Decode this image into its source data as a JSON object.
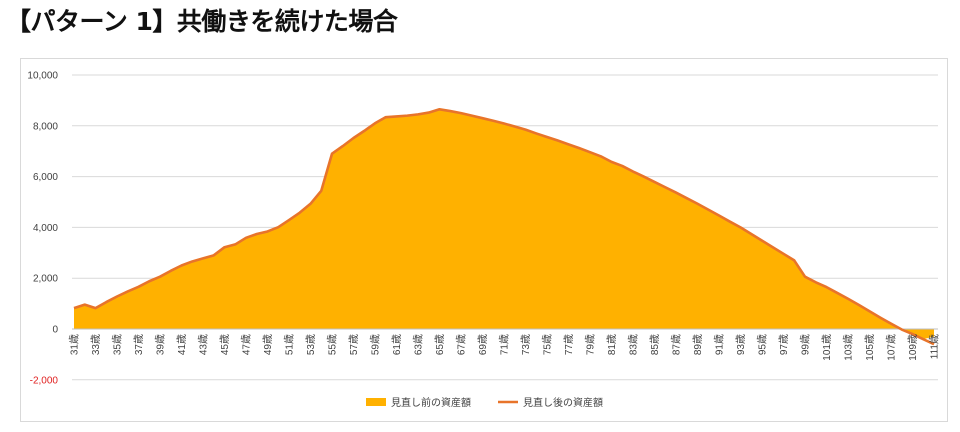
{
  "page": {
    "title": "【パターン 1】共働きを続けた場合"
  },
  "colors": {
    "area": "#FFB100",
    "line": "#E8742A",
    "grid": "#d9d9d9",
    "negative_label": "#E02020"
  },
  "chart_data": {
    "type": "area",
    "title": "",
    "xlabel": "",
    "ylabel": "",
    "ylim": [
      -2000,
      10000
    ],
    "y_ticks": [
      -2000,
      0,
      2000,
      4000,
      6000,
      8000,
      10000
    ],
    "y_tick_labels": [
      "-2,000",
      "0",
      "2,000",
      "4,000",
      "6,000",
      "8,000",
      "10,000"
    ],
    "grid": true,
    "legend_position": "bottom",
    "x": [
      "31歳",
      "32歳",
      "33歳",
      "34歳",
      "35歳",
      "36歳",
      "37歳",
      "38歳",
      "39歳",
      "40歳",
      "41歳",
      "42歳",
      "43歳",
      "44歳",
      "45歳",
      "46歳",
      "47歳",
      "48歳",
      "49歳",
      "50歳",
      "51歳",
      "52歳",
      "53歳",
      "54歳",
      "55歳",
      "56歳",
      "57歳",
      "58歳",
      "59歳",
      "60歳",
      "61歳",
      "62歳",
      "63歳",
      "64歳",
      "65歳",
      "66歳",
      "67歳",
      "68歳",
      "69歳",
      "70歳",
      "71歳",
      "72歳",
      "73歳",
      "74歳",
      "75歳",
      "76歳",
      "77歳",
      "78歳",
      "79歳",
      "80歳",
      "81歳",
      "82歳",
      "83歳",
      "84歳",
      "85歳",
      "86歳",
      "87歳",
      "88歳",
      "89歳",
      "90歳",
      "91歳",
      "92歳",
      "93歳",
      "94歳",
      "95歳",
      "96歳",
      "97歳",
      "98歳",
      "99歳",
      "100歳",
      "101歳",
      "102歳",
      "103歳",
      "104歳",
      "105歳",
      "106歳",
      "107歳",
      "108歳",
      "109歳",
      "110歳",
      "111歳"
    ],
    "x_tick_labels": [
      "31歳",
      "33歳",
      "35歳",
      "37歳",
      "39歳",
      "41歳",
      "43歳",
      "45歳",
      "47歳",
      "49歳",
      "51歳",
      "53歳",
      "55歳",
      "57歳",
      "59歳",
      "61歳",
      "63歳",
      "65歳",
      "67歳",
      "69歳",
      "71歳",
      "73歳",
      "75歳",
      "77歳",
      "79歳",
      "81歳",
      "83歳",
      "85歳",
      "87歳",
      "89歳",
      "91歳",
      "93歳",
      "95歳",
      "97歳",
      "99歳",
      "101歳",
      "103歳",
      "105歳",
      "107歳",
      "109歳",
      "111歳"
    ],
    "series": [
      {
        "name": "見直し前の資産額",
        "kind": "area",
        "color": "#FFB100",
        "values": [
          820,
          960,
          820,
          1060,
          1280,
          1480,
          1660,
          1880,
          2060,
          2290,
          2500,
          2660,
          2780,
          2900,
          3220,
          3330,
          3590,
          3740,
          3840,
          4010,
          4290,
          4580,
          4930,
          5440,
          6900,
          7200,
          7520,
          7800,
          8100,
          8340,
          8370,
          8400,
          8450,
          8520,
          8650,
          8580,
          8500,
          8400,
          8300,
          8200,
          8090,
          7970,
          7850,
          7700,
          7560,
          7420,
          7270,
          7120,
          6960,
          6800,
          6580,
          6420,
          6200,
          6000,
          5790,
          5580,
          5370,
          5150,
          4930,
          4700,
          4470,
          4230,
          4000,
          3740,
          3480,
          3220,
          2960,
          2700,
          2060,
          1840,
          1650,
          1420,
          1190,
          950,
          700,
          450,
          210,
          -20,
          -200,
          -400,
          -300
        ]
      },
      {
        "name": "見直し後の資産額",
        "kind": "line",
        "color": "#E8742A",
        "values": [
          820,
          960,
          820,
          1060,
          1280,
          1480,
          1660,
          1880,
          2060,
          2290,
          2500,
          2660,
          2780,
          2900,
          3220,
          3330,
          3590,
          3740,
          3840,
          4010,
          4290,
          4580,
          4930,
          5440,
          6900,
          7200,
          7520,
          7800,
          8100,
          8340,
          8370,
          8400,
          8450,
          8520,
          8650,
          8580,
          8500,
          8400,
          8300,
          8200,
          8090,
          7970,
          7850,
          7700,
          7560,
          7420,
          7270,
          7120,
          6960,
          6800,
          6580,
          6420,
          6200,
          6000,
          5790,
          5580,
          5370,
          5150,
          4930,
          4700,
          4470,
          4230,
          4000,
          3740,
          3480,
          3220,
          2960,
          2700,
          2060,
          1840,
          1650,
          1420,
          1190,
          950,
          700,
          450,
          210,
          -20,
          -200,
          -400,
          -600
        ]
      }
    ]
  }
}
